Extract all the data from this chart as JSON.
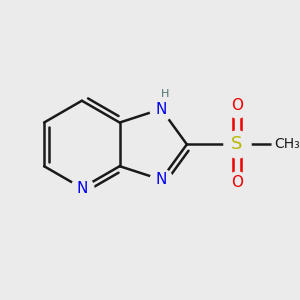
{
  "background_color": "#ebebeb",
  "bond_color": "#1a1a1a",
  "bond_width": 1.8,
  "atom_colors": {
    "N": "#0000ee",
    "H": "#507070",
    "S": "#b8b800",
    "O": "#ee0000",
    "C": "#1a1a1a"
  },
  "figsize": [
    3.0,
    3.0
  ],
  "dpi": 100
}
